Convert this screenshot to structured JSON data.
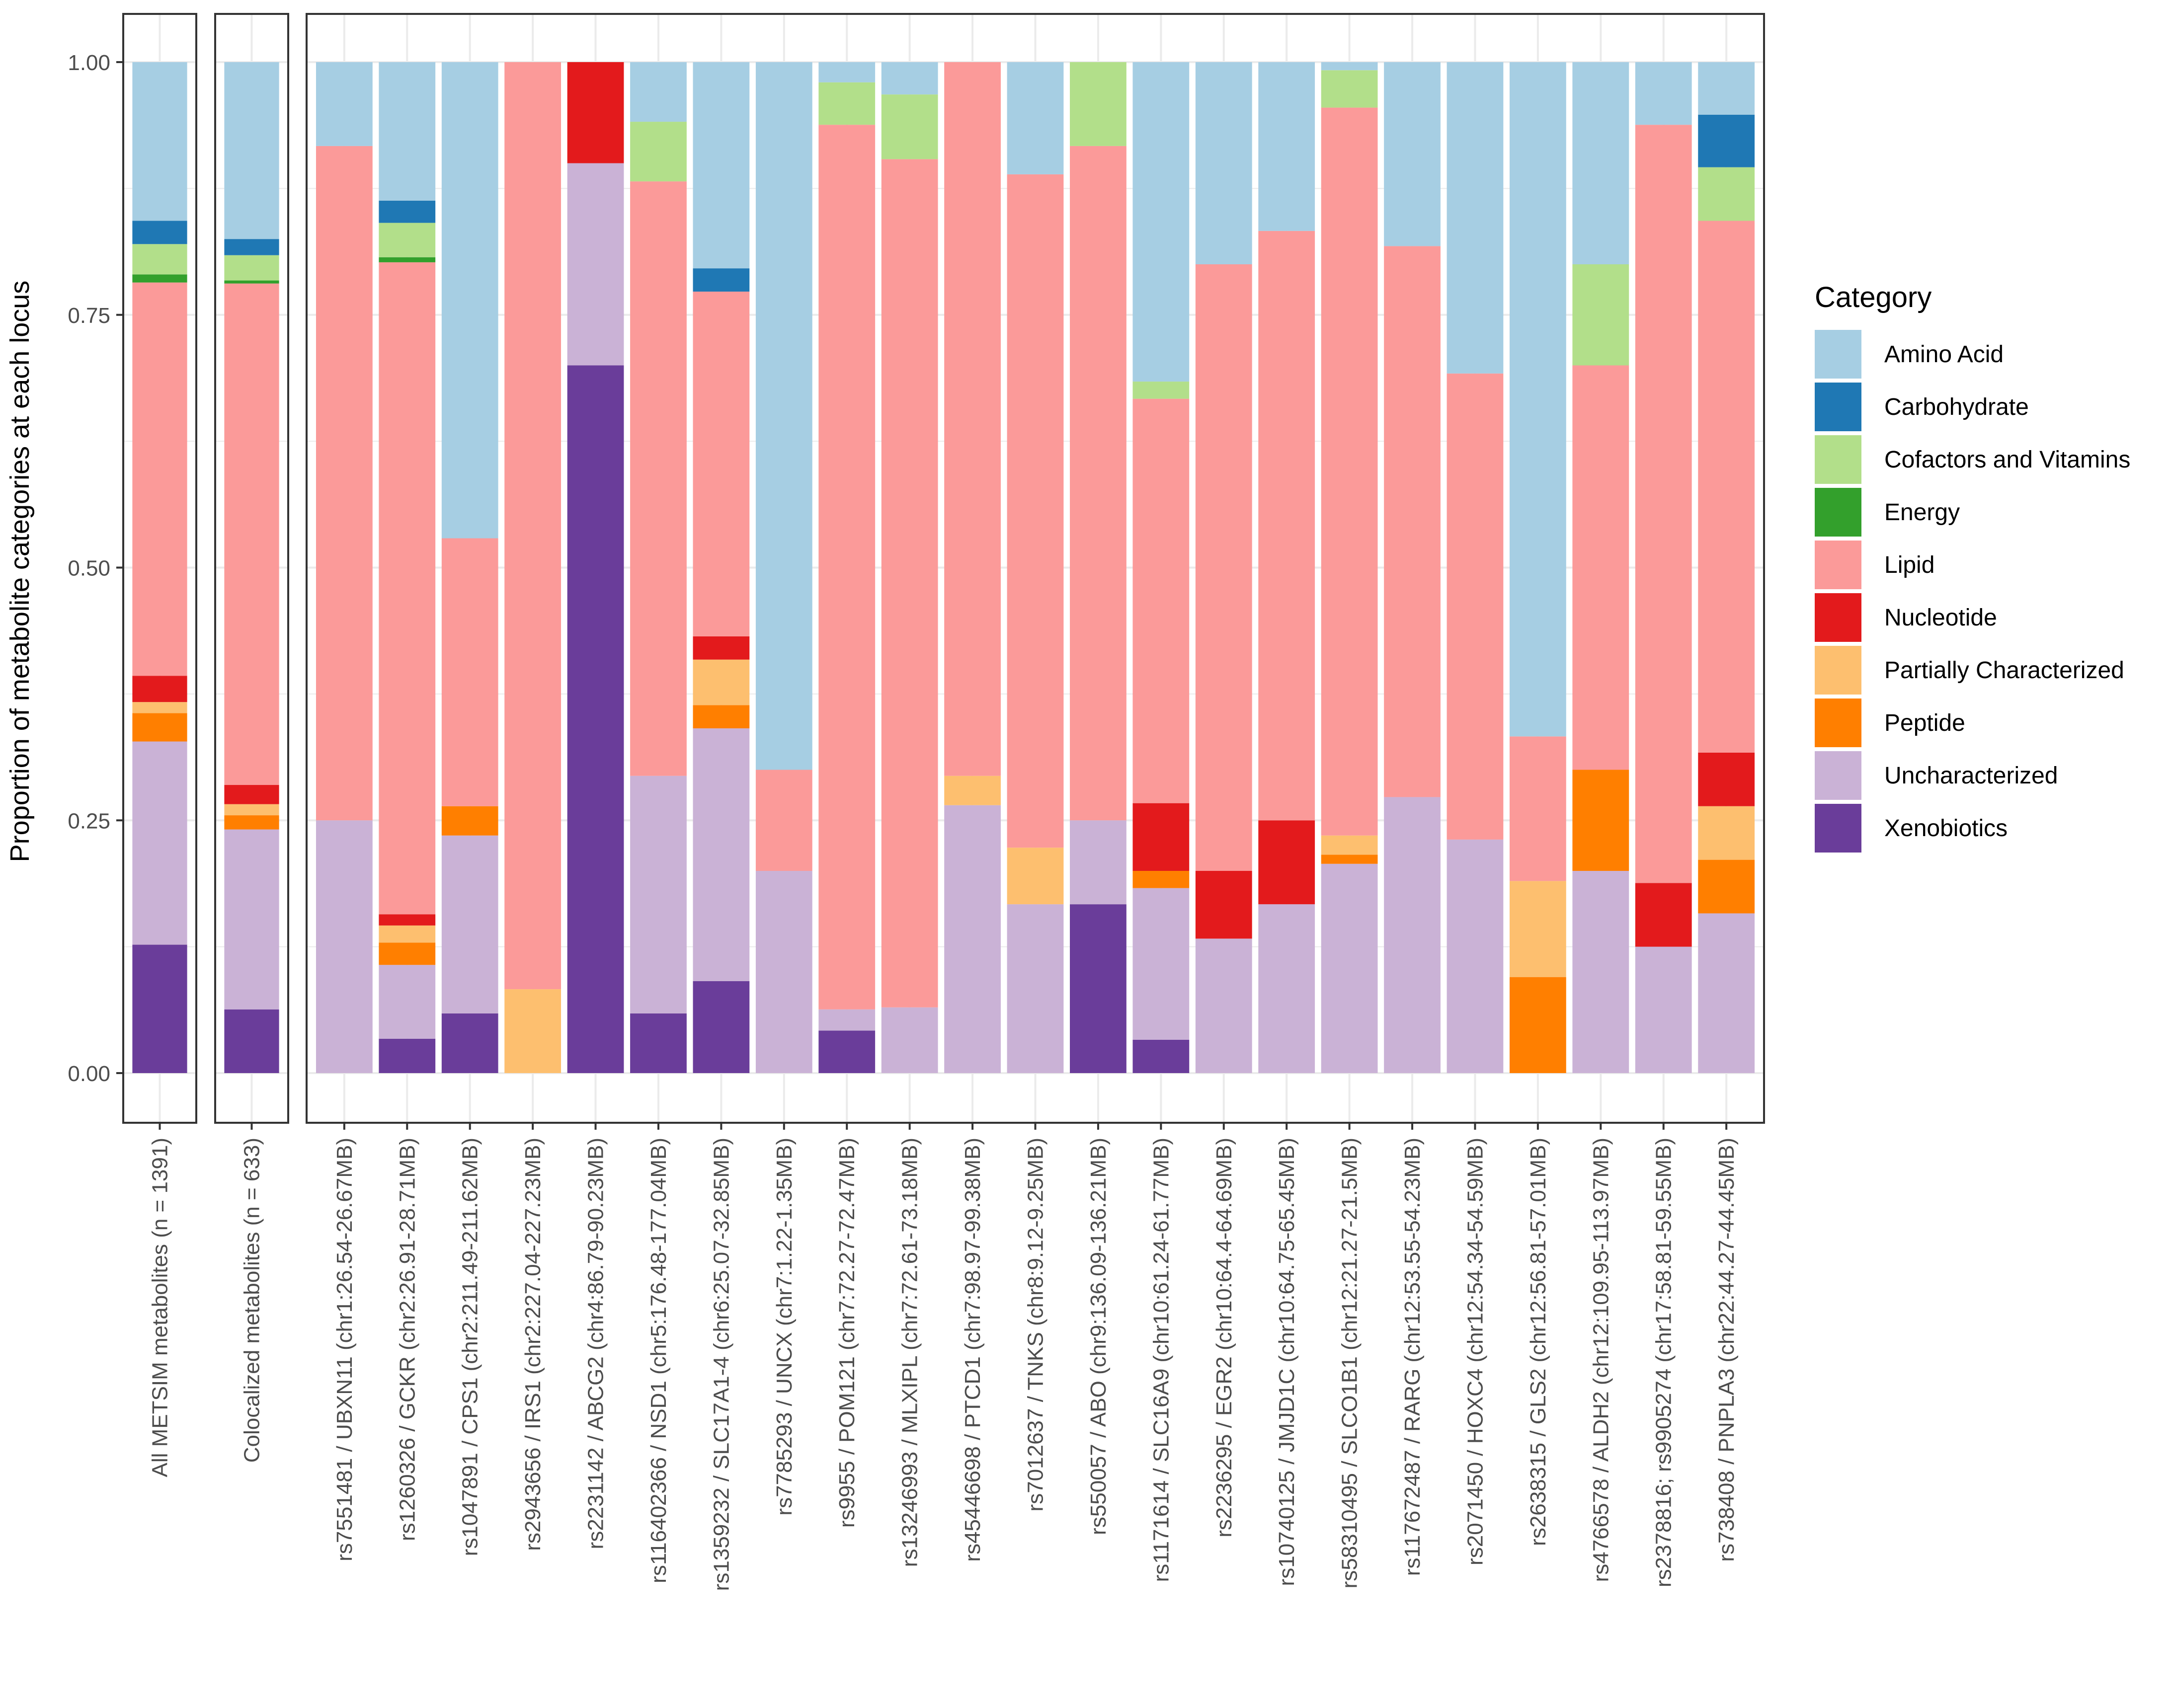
{
  "chart_data": {
    "type": "bar",
    "stacked": true,
    "ylabel": "Proportion of metabolite categories at each locus",
    "xlabel": "",
    "ylim": [
      0,
      1
    ],
    "yticks": [
      "0.00",
      "0.25",
      "0.50",
      "0.75",
      "1.00"
    ],
    "ytick_values": [
      0,
      0.25,
      0.5,
      0.75,
      1.0
    ],
    "legend": {
      "title": "Category",
      "position": "right",
      "items": [
        {
          "label": "Amino Acid",
          "color": "#A6CEE3"
        },
        {
          "label": "Carbohydrate",
          "color": "#1F78B4"
        },
        {
          "label": "Cofactors and Vitamins",
          "color": "#B2DF8A"
        },
        {
          "label": "Energy",
          "color": "#33A02C"
        },
        {
          "label": "Lipid",
          "color": "#FB9A99"
        },
        {
          "label": "Nucleotide",
          "color": "#E31A1C"
        },
        {
          "label": "Partially Characterized",
          "color": "#FDBF6F"
        },
        {
          "label": "Peptide",
          "color": "#FF7F00"
        },
        {
          "label": "Uncharacterized",
          "color": "#CAB2D6"
        },
        {
          "label": "Xenobiotics",
          "color": "#6A3D9A"
        }
      ]
    },
    "stack_order_bottom_to_top": [
      "Xenobiotics",
      "Uncharacterized",
      "Peptide",
      "Partially Characterized",
      "Nucleotide",
      "Lipid",
      "Energy",
      "Cofactors and Vitamins",
      "Carbohydrate",
      "Amino Acid"
    ],
    "facets": [
      {
        "name": "all",
        "bars": [
          {
            "label": "All METSIM metabolites (n = 1391)",
            "values": {
              "Xenobiotics": 0.127,
              "Uncharacterized": 0.201,
              "Peptide": 0.028,
              "Partially Characterized": 0.011,
              "Nucleotide": 0.026,
              "Lipid": 0.389,
              "Energy": 0.008,
              "Cofactors and Vitamins": 0.03,
              "Carbohydrate": 0.023,
              "Amino Acid": 0.157
            }
          }
        ]
      },
      {
        "name": "colocalized",
        "bars": [
          {
            "label": "Colocalized metabolites (n = 633)",
            "values": {
              "Xenobiotics": 0.063,
              "Uncharacterized": 0.178,
              "Peptide": 0.014,
              "Partially Characterized": 0.011,
              "Nucleotide": 0.019,
              "Lipid": 0.496,
              "Energy": 0.003,
              "Cofactors and Vitamins": 0.025,
              "Carbohydrate": 0.016,
              "Amino Acid": 0.175
            }
          }
        ]
      },
      {
        "name": "loci",
        "bars": [
          {
            "label": "rs7551481 / UBXN11 (chr1:26.54-26.67MB)",
            "values": {
              "Uncharacterized": 0.25,
              "Lipid": 0.667,
              "Amino Acid": 0.083
            }
          },
          {
            "label": "rs1260326 / GCKR (chr2:26.91-28.71MB)",
            "values": {
              "Xenobiotics": 0.034,
              "Uncharacterized": 0.073,
              "Peptide": 0.022,
              "Partially Characterized": 0.017,
              "Nucleotide": 0.011,
              "Lipid": 0.645,
              "Energy": 0.005,
              "Cofactors and Vitamins": 0.034,
              "Carbohydrate": 0.022,
              "Amino Acid": 0.137
            }
          },
          {
            "label": "rs1047891 / CPS1 (chr2:211.49-211.62MB)",
            "values": {
              "Xenobiotics": 0.059,
              "Uncharacterized": 0.176,
              "Peptide": 0.029,
              "Lipid": 0.265,
              "Amino Acid": 0.471
            }
          },
          {
            "label": "rs2943656 / IRS1 (chr2:227.04-227.23MB)",
            "values": {
              "Partially Characterized": 0.083,
              "Lipid": 0.917
            }
          },
          {
            "label": "rs2231142 / ABCG2 (chr4:86.79-90.23MB)",
            "values": {
              "Xenobiotics": 0.7,
              "Uncharacterized": 0.2,
              "Nucleotide": 0.1
            }
          },
          {
            "label": "rs116402366 / NSD1 (chr5:176.48-177.04MB)",
            "values": {
              "Xenobiotics": 0.059,
              "Uncharacterized": 0.235,
              "Lipid": 0.588,
              "Cofactors and Vitamins": 0.059,
              "Amino Acid": 0.059
            }
          },
          {
            "label": "rs1359232 / SLC17A1-4 (chr6:25.07-32.85MB)",
            "values": {
              "Xenobiotics": 0.091,
              "Uncharacterized": 0.25,
              "Peptide": 0.023,
              "Partially Characterized": 0.045,
              "Nucleotide": 0.023,
              "Lipid": 0.341,
              "Carbohydrate": 0.023,
              "Amino Acid": 0.204
            }
          },
          {
            "label": "rs7785293 / UNCX (chr7:1.22-1.35MB)",
            "values": {
              "Uncharacterized": 0.2,
              "Lipid": 0.1,
              "Amino Acid": 0.7
            }
          },
          {
            "label": "rs9955 / POM121 (chr7:72.27-72.47MB)",
            "values": {
              "Xenobiotics": 0.042,
              "Uncharacterized": 0.021,
              "Lipid": 0.875,
              "Cofactors and Vitamins": 0.042,
              "Amino Acid": 0.02
            }
          },
          {
            "label": "rs13246993 / MLXIPL (chr7:72.61-73.18MB)",
            "values": {
              "Uncharacterized": 0.065,
              "Lipid": 0.839,
              "Cofactors and Vitamins": 0.064,
              "Amino Acid": 0.032
            }
          },
          {
            "label": "rs45446698 / PTCD1 (chr7:98.97-99.38MB)",
            "values": {
              "Uncharacterized": 0.265,
              "Partially Characterized": 0.029,
              "Lipid": 0.706
            }
          },
          {
            "label": "rs7012637 / TNKS (chr8:9.12-9.25MB)",
            "values": {
              "Uncharacterized": 0.167,
              "Partially Characterized": 0.056,
              "Lipid": 0.666,
              "Amino Acid": 0.111
            }
          },
          {
            "label": "rs550057 / ABO (chr9:136.09-136.21MB)",
            "values": {
              "Xenobiotics": 0.167,
              "Uncharacterized": 0.083,
              "Lipid": 0.667,
              "Cofactors and Vitamins": 0.083
            }
          },
          {
            "label": "rs1171614 / SLC16A9 (chr10:61.24-61.77MB)",
            "values": {
              "Xenobiotics": 0.033,
              "Uncharacterized": 0.15,
              "Peptide": 0.017,
              "Nucleotide": 0.067,
              "Lipid": 0.4,
              "Cofactors and Vitamins": 0.017,
              "Amino Acid": 0.316
            }
          },
          {
            "label": "rs2236295 / EGR2 (chr10:64.4-64.69MB)",
            "values": {
              "Uncharacterized": 0.133,
              "Nucleotide": 0.067,
              "Lipid": 0.6,
              "Amino Acid": 0.2
            }
          },
          {
            "label": "rs10740125 / JMJD1C (chr10:64.75-65.45MB)",
            "values": {
              "Uncharacterized": 0.167,
              "Nucleotide": 0.083,
              "Lipid": 0.583,
              "Amino Acid": 0.167
            }
          },
          {
            "label": "rs58310495 / SLCO1B1 (chr12:21.27-21.5MB)",
            "values": {
              "Uncharacterized": 0.207,
              "Peptide": 0.009,
              "Partially Characterized": 0.019,
              "Lipid": 0.72,
              "Cofactors and Vitamins": 0.037,
              "Amino Acid": 0.008
            }
          },
          {
            "label": "rs117672487 / RARG (chr12:53.55-54.23MB)",
            "values": {
              "Uncharacterized": 0.273,
              "Lipid": 0.545,
              "Amino Acid": 0.182
            }
          },
          {
            "label": "rs2071450 / HOXC4 (chr12:54.34-54.59MB)",
            "values": {
              "Uncharacterized": 0.231,
              "Lipid": 0.461,
              "Amino Acid": 0.308
            }
          },
          {
            "label": "rs2638315 / GLS2 (chr12:56.81-57.01MB)",
            "values": {
              "Peptide": 0.095,
              "Partially Characterized": 0.095,
              "Lipid": 0.143,
              "Amino Acid": 0.667
            }
          },
          {
            "label": "rs4766578 / ALDH2 (chr12:109.95-113.97MB)",
            "values": {
              "Uncharacterized": 0.2,
              "Peptide": 0.1,
              "Lipid": 0.4,
              "Cofactors and Vitamins": 0.1,
              "Amino Acid": 0.2
            }
          },
          {
            "label": "rs2378816; rs9905274 (chr17:58.81-59.55MB)",
            "values": {
              "Uncharacterized": 0.125,
              "Nucleotide": 0.063,
              "Lipid": 0.75,
              "Amino Acid": 0.062
            }
          },
          {
            "label": "rs738408 / PNPLA3 (chr22:44.27-44.45MB)",
            "values": {
              "Uncharacterized": 0.158,
              "Peptide": 0.053,
              "Partially Characterized": 0.053,
              "Nucleotide": 0.053,
              "Lipid": 0.526,
              "Cofactors and Vitamins": 0.053,
              "Carbohydrate": 0.052,
              "Amino Acid": 0.052
            }
          }
        ]
      }
    ]
  }
}
